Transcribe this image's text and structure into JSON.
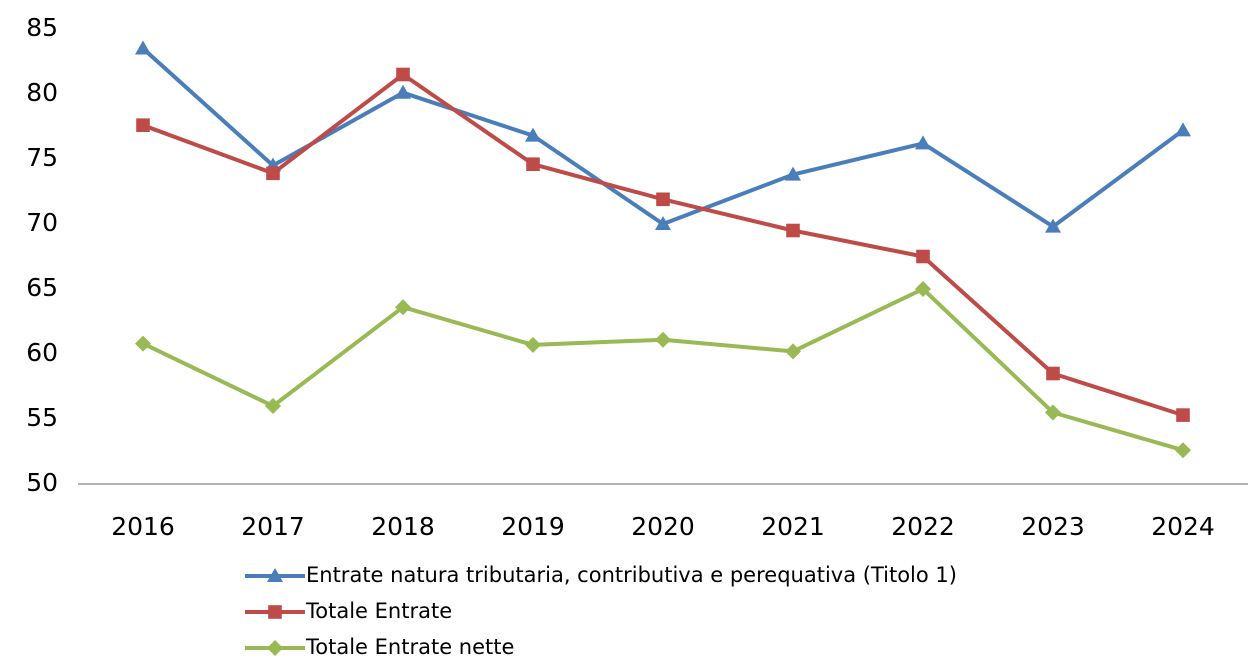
{
  "chart_data": {
    "type": "line",
    "categories": [
      "2016",
      "2017",
      "2018",
      "2019",
      "2020",
      "2021",
      "2022",
      "2023",
      "2024"
    ],
    "series": [
      {
        "name": "Entrate natura tributaria, contributiva e perequativa (Titolo 1)",
        "color": "#4a7ebb",
        "marker": "triangle",
        "values": [
          83.5,
          74.5,
          80.1,
          76.8,
          70.0,
          73.8,
          76.2,
          69.8,
          77.2
        ]
      },
      {
        "name": "Totale Entrate",
        "color": "#be4b48",
        "marker": "square",
        "values": [
          77.6,
          73.9,
          81.5,
          74.6,
          71.9,
          69.5,
          67.5,
          58.5,
          55.3
        ]
      },
      {
        "name": "Totale Entrate nette",
        "color": "#98b954",
        "marker": "diamond",
        "values": [
          60.8,
          56.0,
          63.6,
          60.7,
          61.1,
          60.2,
          65.0,
          55.5,
          52.6
        ]
      }
    ],
    "ylim": [
      50,
      85
    ],
    "yticks": [
      50,
      55,
      60,
      65,
      70,
      75,
      80,
      85
    ],
    "grid": false,
    "legend": "bottom"
  }
}
